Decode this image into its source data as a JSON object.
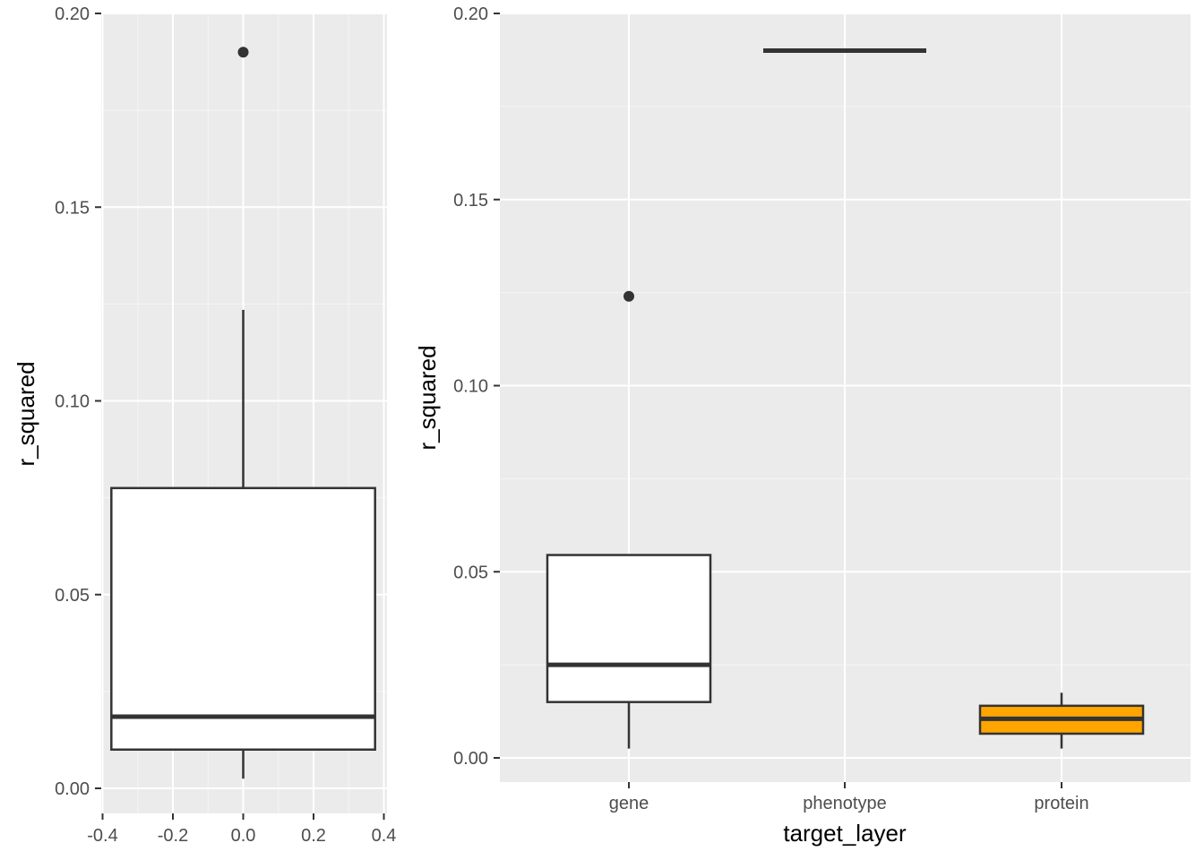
{
  "chart_data": [
    {
      "type": "box",
      "ylabel": "r_squared",
      "xlabel": "",
      "xlim": [
        -0.4,
        0.4
      ],
      "ylim": [
        0,
        0.2
      ],
      "x_ticks": [
        "-0.4",
        "-0.2",
        "0.0",
        "0.2",
        "0.4"
      ],
      "y_ticks": [
        "0.00",
        "0.05",
        "0.10",
        "0.15",
        "0.20"
      ],
      "grid": true,
      "boxes": [
        {
          "x": 0,
          "half_width": 0.375,
          "fill": "#ffffff",
          "lower_whisker": 0.0025,
          "q1": 0.01,
          "median": 0.0185,
          "q3": 0.0775,
          "upper_whisker": 0.1235,
          "outliers": [
            0.19
          ]
        }
      ]
    },
    {
      "type": "box",
      "ylabel": "r_squared",
      "xlabel": "target_layer",
      "categories": [
        "gene",
        "phenotype",
        "protein"
      ],
      "ylim": [
        0,
        0.2
      ],
      "y_ticks": [
        "0.00",
        "0.05",
        "0.10",
        "0.15",
        "0.20"
      ],
      "grid": true,
      "boxes": [
        {
          "category": "gene",
          "fill": "#ffffff",
          "lower_whisker": 0.0025,
          "q1": 0.015,
          "median": 0.025,
          "q3": 0.0545,
          "upper_whisker": 0.0545,
          "outliers": [
            0.124
          ]
        },
        {
          "category": "phenotype",
          "fill": "#ffffff",
          "lower_whisker": 0.19,
          "q1": 0.19,
          "median": 0.19,
          "q3": 0.19,
          "upper_whisker": 0.19,
          "outliers": []
        },
        {
          "category": "protein",
          "fill": "#FFA500",
          "lower_whisker": 0.0025,
          "q1": 0.0065,
          "median": 0.0105,
          "q3": 0.014,
          "upper_whisker": 0.0175,
          "outliers": []
        }
      ]
    }
  ]
}
